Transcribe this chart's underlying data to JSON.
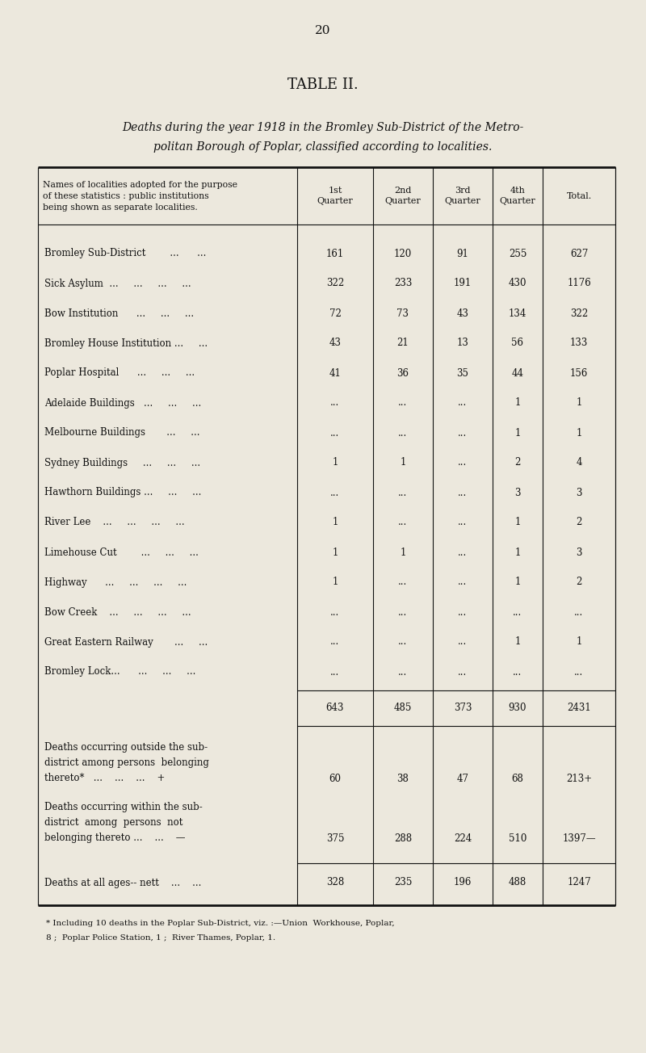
{
  "page_number": "20",
  "table_title": "TABLE II.",
  "subtitle_line1": "Deaths during the year 1918 in the Bromley Sub-District of the Metro-",
  "subtitle_line2": "politan Borough of Poplar, classified according to localities.",
  "header_col_lines": [
    "Names of localities adopted for the purpose",
    "of these statistics : public institutions",
    "being shown as separate localities."
  ],
  "col_headers": [
    "1st\nQuarter",
    "2nd\nQuarter",
    "3rd\nQuarter",
    "4th\nQuarter",
    "Total."
  ],
  "rows": [
    {
      "name": "Bromley Sub-District        ...      ...",
      "q1": "161",
      "q2": "120",
      "q3": "91",
      "q4": "255",
      "total": "627"
    },
    {
      "name": "Sick Asylum  ...     ...     ...     ...",
      "q1": "322",
      "q2": "233",
      "q3": "191",
      "q4": "430",
      "total": "1176"
    },
    {
      "name": "Bow Institution      ...     ...     ...",
      "q1": "72",
      "q2": "73",
      "q3": "43",
      "q4": "134",
      "total": "322"
    },
    {
      "name": "Bromley House Institution ...     ...",
      "q1": "43",
      "q2": "21",
      "q3": "13",
      "q4": "56",
      "total": "133"
    },
    {
      "name": "Poplar Hospital      ...     ...     ...",
      "q1": "41",
      "q2": "36",
      "q3": "35",
      "q4": "44",
      "total": "156"
    },
    {
      "name": "Adelaide Buildings   ...     ...     ...",
      "q1": "...",
      "q2": "...",
      "q3": "...",
      "q4": "1",
      "total": "1"
    },
    {
      "name": "Melbourne Buildings       ...     ...",
      "q1": "...",
      "q2": "...",
      "q3": "...",
      "q4": "1",
      "total": "1"
    },
    {
      "name": "Sydney Buildings     ...     ...     ...",
      "q1": "1",
      "q2": "1",
      "q3": "...",
      "q4": "2",
      "total": "4"
    },
    {
      "name": "Hawthorn Buildings ...     ...     ...",
      "q1": "...",
      "q2": "...",
      "q3": "...",
      "q4": "3",
      "total": "3"
    },
    {
      "name": "River Lee    ...     ...     ...     ...",
      "q1": "1",
      "q2": "...",
      "q3": "...",
      "q4": "1",
      "total": "2"
    },
    {
      "name": "Limehouse Cut        ...     ...     ...",
      "q1": "1",
      "q2": "1",
      "q3": "...",
      "q4": "1",
      "total": "3"
    },
    {
      "name": "Highway      ...     ...     ...     ...",
      "q1": "1",
      "q2": "...",
      "q3": "...",
      "q4": "1",
      "total": "2"
    },
    {
      "name": "Bow Creek    ...     ...     ...     ...",
      "q1": "...",
      "q2": "...",
      "q3": "...",
      "q4": "...",
      "total": "..."
    },
    {
      "name": "Great Eastern Railway       ...     ...",
      "q1": "...",
      "q2": "...",
      "q3": "...",
      "q4": "1",
      "total": "1"
    },
    {
      "name": "Bromley Lock...      ...     ...     ...",
      "q1": "...",
      "q2": "...",
      "q3": "...",
      "q4": "...",
      "total": "..."
    }
  ],
  "totals_row": {
    "q1": "643",
    "q2": "485",
    "q3": "373",
    "q4": "930",
    "total": "2431"
  },
  "outside_label_lines": [
    "Deaths occurring outside the sub-",
    "district among persons  belonging",
    "thereto*   ...    ...    ...    +"
  ],
  "outside_row": {
    "q1": "60",
    "q2": "38",
    "q3": "47",
    "q4": "68",
    "total": "213+"
  },
  "within_label_lines": [
    "Deaths occurring within the sub-",
    "district  among  persons  not",
    "belonging thereto ...    ...    —"
  ],
  "within_row": {
    "q1": "375",
    "q2": "288",
    "q3": "224",
    "q4": "510",
    "total": "1397—"
  },
  "nett_label": "Deaths at all ages-- nett    ...    ...",
  "nett_row": {
    "q1": "328",
    "q2": "235",
    "q3": "196",
    "q4": "488",
    "total": "1247"
  },
  "footnote_line1": "* Including 10 deaths in the Poplar Sub-District, viz. :—Union  Workhouse, Poplar,",
  "footnote_line2": "8 ;  Poplar Police Station, 1 ;  River Thames, Poplar, 1.",
  "bg_color": "#ece8dd",
  "text_color": "#111111",
  "line_color": "#111111"
}
